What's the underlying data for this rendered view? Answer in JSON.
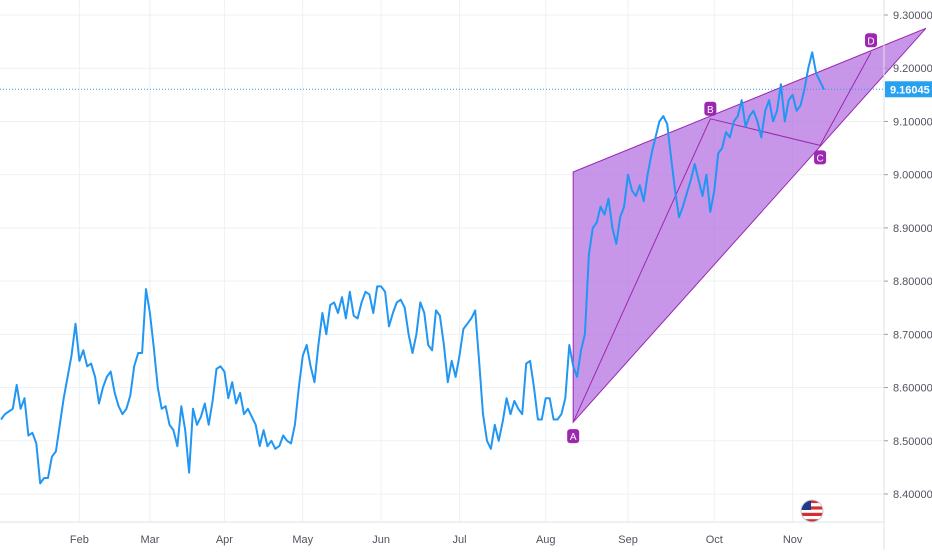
{
  "chart_data": {
    "type": "line",
    "title": "",
    "xlabel": "",
    "ylabel": "",
    "x_ticks": [
      "Feb",
      "Mar",
      "Apr",
      "May",
      "Jun",
      "Jul",
      "Aug",
      "Sep",
      "Oct",
      "Nov"
    ],
    "y_ticks": [
      "8.40000",
      "8.50000",
      "8.60000",
      "8.70000",
      "8.80000",
      "8.90000",
      "9.00000",
      "9.10000",
      "9.20000",
      "9.30000"
    ],
    "ylim": [
      8.35,
      9.32
    ],
    "grid": true,
    "x_unit": "trading day index",
    "series": [
      {
        "values": [
          8.54,
          8.55,
          8.555,
          8.56,
          8.605,
          8.56,
          8.58,
          8.51,
          8.515,
          8.495,
          8.42,
          8.43,
          8.43,
          8.47,
          8.48,
          8.53,
          8.58,
          8.62,
          8.66,
          8.72,
          8.65,
          8.67,
          8.64,
          8.645,
          8.62,
          8.57,
          8.6,
          8.62,
          8.63,
          8.59,
          8.565,
          8.55,
          8.56,
          8.585,
          8.64,
          8.665,
          8.665,
          8.785,
          8.74,
          8.675,
          8.6,
          8.56,
          8.565,
          8.53,
          8.52,
          8.49,
          8.565,
          8.52,
          8.44,
          8.56,
          8.53,
          8.545,
          8.57,
          8.53,
          8.575,
          8.635,
          8.64,
          8.63,
          8.58,
          8.61,
          8.57,
          8.59,
          8.55,
          8.56,
          8.545,
          8.53,
          8.49,
          8.52,
          8.49,
          8.5,
          8.485,
          8.49,
          8.51,
          8.5,
          8.495,
          8.53,
          8.6,
          8.66,
          8.68,
          8.64,
          8.61,
          8.68,
          8.74,
          8.7,
          8.755,
          8.76,
          8.74,
          8.77,
          8.73,
          8.78,
          8.735,
          8.73,
          8.76,
          8.78,
          8.775,
          8.74,
          8.79,
          8.79,
          8.78,
          8.715,
          8.74,
          8.76,
          8.765,
          8.75,
          8.7,
          8.665,
          8.7,
          8.76,
          8.74,
          8.68,
          8.67,
          8.745,
          8.735,
          8.68,
          8.61,
          8.65,
          8.62,
          8.66,
          8.71,
          8.72,
          8.73,
          8.745,
          8.65,
          8.55,
          8.5,
          8.485,
          8.53,
          8.5,
          8.535,
          8.58,
          8.55,
          8.575,
          8.56,
          8.55,
          8.645,
          8.65,
          8.6,
          8.54,
          8.54,
          8.58,
          8.58,
          8.54,
          8.54,
          8.55,
          8.58,
          8.68,
          8.64,
          8.62,
          8.67,
          8.7,
          8.85,
          8.9,
          8.91,
          8.94,
          8.925,
          8.955,
          8.9,
          8.87,
          8.92,
          8.94,
          9.0,
          8.97,
          8.96,
          8.98,
          8.95,
          9.0,
          9.04,
          9.07,
          9.1,
          9.11,
          9.095,
          9.03,
          8.97,
          8.92,
          8.94,
          8.965,
          8.99,
          9.02,
          8.99,
          8.96,
          9.0,
          8.93,
          8.97,
          9.04,
          9.05,
          9.08,
          9.07,
          9.1,
          9.11,
          9.14,
          9.09,
          9.11,
          9.12,
          9.1,
          9.07,
          9.12,
          9.14,
          9.1,
          9.12,
          9.17,
          9.1,
          9.14,
          9.15,
          9.12,
          9.13,
          9.16,
          9.2,
          9.23,
          9.19,
          9.175,
          9.16
        ]
      }
    ],
    "last_price_label": "9.16045",
    "pattern": {
      "type": "ABCD",
      "points": [
        {
          "label": "A",
          "x": 146,
          "y": 8.535
        },
        {
          "label": "B",
          "x": 181,
          "y": 9.105
        },
        {
          "label": "C",
          "x": 209,
          "y": 9.055
        },
        {
          "label": "D",
          "x": 222,
          "y": 9.23
        }
      ],
      "channel_apex": {
        "x": 236,
        "y": 9.275
      },
      "channel_top_left": {
        "x": 146,
        "y": 9.005
      },
      "fill_color": "#b26ee0",
      "line_color": "#9c27b0"
    },
    "colors": {
      "series": "#2196f3",
      "price_line": "#26a0f0",
      "label_bg": "#9c27b0"
    }
  },
  "overlay": {
    "flag_icon": "us-flag-icon"
  }
}
